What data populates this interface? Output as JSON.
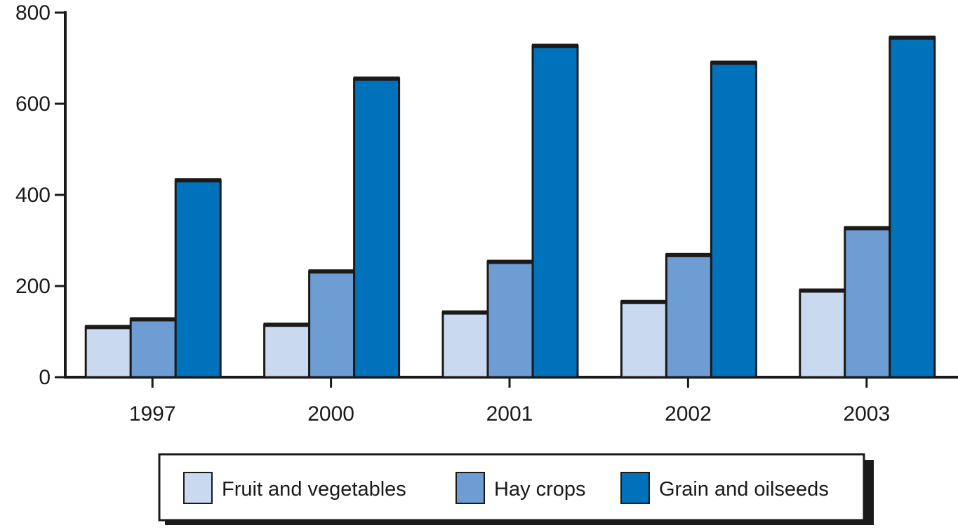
{
  "chart_data": {
    "type": "bar",
    "title": "",
    "xlabel": "",
    "ylabel": "",
    "categories": [
      "1997",
      "2000",
      "2001",
      "2002",
      "2003"
    ],
    "series": [
      {
        "name": "Fruit and vegetables",
        "color": "#c9daf0",
        "values": [
          110,
          115,
          142,
          165,
          190
        ]
      },
      {
        "name": "Hay crops",
        "color": "#6d9dd2",
        "values": [
          127,
          232,
          253,
          268,
          327
        ]
      },
      {
        "name": "Grain and oilseeds",
        "color": "#0072bc",
        "values": [
          432,
          655,
          727,
          690,
          745
        ]
      }
    ],
    "ylim": [
      0,
      800
    ],
    "yticks": [
      0,
      200,
      400,
      600,
      800
    ],
    "grid": false,
    "legend_position": "bottom"
  }
}
